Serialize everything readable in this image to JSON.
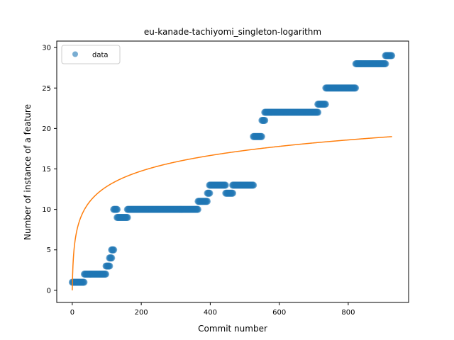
{
  "chart_data": {
    "type": "scatter",
    "title": "eu-kanade-tachiyomi_singleton-logarithm",
    "xlabel": "Commit number",
    "ylabel": "Number of instance of a feature",
    "xlim": [
      -45,
      975
    ],
    "ylim": [
      -1.5,
      30.8
    ],
    "x_ticks": [
      0,
      200,
      400,
      600,
      800
    ],
    "y_ticks": [
      0,
      5,
      10,
      15,
      20,
      25,
      30
    ],
    "grid": false,
    "legend_position": "top-left",
    "colors": {
      "points": "#1f77b4",
      "fit": "#ff7f0e"
    },
    "series": [
      {
        "name": "data",
        "kind": "scatter",
        "segments": [
          {
            "x_start": 0,
            "x_end": 35,
            "y": 1
          },
          {
            "x_start": 35,
            "x_end": 98,
            "y": 2
          },
          {
            "x_start": 98,
            "x_end": 108,
            "y": 3
          },
          {
            "x_start": 108,
            "x_end": 114,
            "y": 4
          },
          {
            "x_start": 114,
            "x_end": 120,
            "y": 5
          },
          {
            "x_start": 120,
            "x_end": 130,
            "y": 10
          },
          {
            "x_start": 130,
            "x_end": 160,
            "y": 9
          },
          {
            "x_start": 160,
            "x_end": 365,
            "y": 10
          },
          {
            "x_start": 365,
            "x_end": 392,
            "y": 11
          },
          {
            "x_start": 392,
            "x_end": 398,
            "y": 12
          },
          {
            "x_start": 398,
            "x_end": 445,
            "y": 13
          },
          {
            "x_start": 445,
            "x_end": 465,
            "y": 12
          },
          {
            "x_start": 465,
            "x_end": 525,
            "y": 13
          },
          {
            "x_start": 525,
            "x_end": 550,
            "y": 19
          },
          {
            "x_start": 550,
            "x_end": 558,
            "y": 21
          },
          {
            "x_start": 558,
            "x_end": 712,
            "y": 22
          },
          {
            "x_start": 712,
            "x_end": 735,
            "y": 23
          },
          {
            "x_start": 735,
            "x_end": 822,
            "y": 25
          },
          {
            "x_start": 822,
            "x_end": 908,
            "y": 28
          },
          {
            "x_start": 908,
            "x_end": 927,
            "y": 29
          }
        ]
      },
      {
        "kind": "line",
        "formula": "y = 2.78 * ln(x + 1)",
        "a": 2.78,
        "x_range": [
          0,
          927
        ]
      }
    ]
  }
}
